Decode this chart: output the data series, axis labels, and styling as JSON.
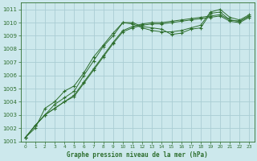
{
  "title": "Graphe pression niveau de la mer (hPa)",
  "bg_color": "#cce8ec",
  "grid_color": "#aacdd4",
  "line_color": "#2d6e2d",
  "xlim": [
    -0.5,
    23.5
  ],
  "ylim": [
    1001,
    1011.5
  ],
  "xticks": [
    0,
    1,
    2,
    3,
    4,
    5,
    6,
    7,
    8,
    9,
    10,
    11,
    12,
    13,
    14,
    15,
    16,
    17,
    18,
    19,
    20,
    21,
    22,
    23
  ],
  "yticks": [
    1001,
    1002,
    1003,
    1004,
    1005,
    1006,
    1007,
    1008,
    1009,
    1010,
    1011
  ],
  "series": [
    [
      1001.3,
      1002.2,
      1003.0,
      1003.8,
      1004.3,
      1004.8,
      1006.0,
      1007.1,
      1008.2,
      1009.0,
      1010.0,
      1010.0,
      1009.7,
      1009.6,
      1009.5,
      1009.1,
      1009.2,
      1009.5,
      1009.6,
      1010.7,
      1010.8,
      1010.2,
      1010.1,
      1010.5
    ],
    [
      1001.3,
      1002.0,
      1003.5,
      1004.0,
      1004.8,
      1005.2,
      1006.2,
      1007.4,
      1008.3,
      1009.2,
      1010.0,
      1009.9,
      1009.6,
      1009.4,
      1009.3,
      1009.3,
      1009.4,
      1009.6,
      1009.8,
      1010.8,
      1011.0,
      1010.4,
      1010.2,
      1010.6
    ],
    [
      1001.3,
      1002.2,
      1003.0,
      1003.5,
      1004.0,
      1004.5,
      1005.5,
      1006.5,
      1007.5,
      1008.5,
      1009.4,
      1009.7,
      1009.9,
      1010.0,
      1010.0,
      1010.1,
      1010.2,
      1010.3,
      1010.4,
      1010.5,
      1010.6,
      1010.2,
      1010.1,
      1010.5
    ],
    [
      1001.3,
      1002.2,
      1003.0,
      1003.5,
      1004.0,
      1004.4,
      1005.4,
      1006.4,
      1007.4,
      1008.4,
      1009.3,
      1009.6,
      1009.8,
      1009.9,
      1009.9,
      1010.0,
      1010.1,
      1010.2,
      1010.3,
      1010.4,
      1010.5,
      1010.1,
      1010.0,
      1010.4
    ]
  ]
}
